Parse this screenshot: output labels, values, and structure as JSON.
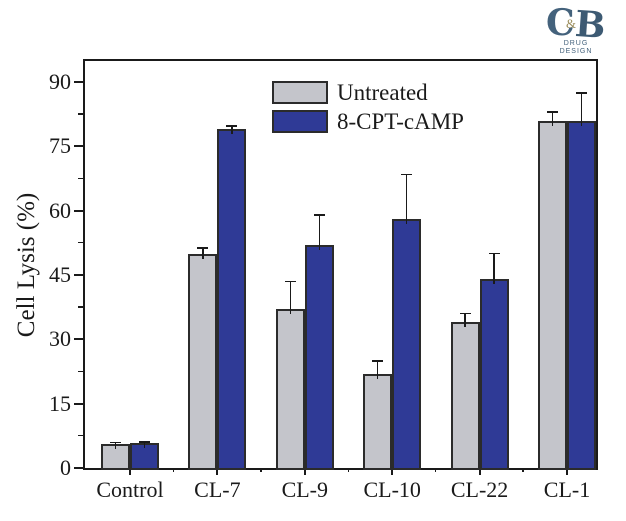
{
  "page": {
    "background": "#ffffff"
  },
  "logo": {
    "letter_c": "C",
    "ampersand": "&",
    "letter_b": "B",
    "line1": "DRUG",
    "line2": "DESIGN",
    "color": "#44627c"
  },
  "chart_data": {
    "type": "bar",
    "title": "",
    "xlabel": "",
    "ylabel": "Cell Lysis (%)",
    "ylim": [
      0,
      95.4
    ],
    "y_major_ticks": [
      0,
      15,
      30,
      45,
      60,
      75,
      90
    ],
    "y_minor_step": 7.5,
    "grid": false,
    "legend_position": "top-center-inside",
    "categories": [
      "Control",
      "CL-7",
      "CL-9",
      "CL-10",
      "CL-22",
      "CL-1"
    ],
    "series": [
      {
        "name": "Untreated",
        "color": "#c4c5cb",
        "values": [
          5.5,
          50,
          37,
          22,
          34,
          81
        ],
        "errors": [
          0.4,
          1.3,
          6.5,
          3,
          2,
          2
        ]
      },
      {
        "name": "8-CPT-cAMP",
        "color": "#2f3a96",
        "values": [
          5.8,
          79,
          52,
          58,
          44,
          81
        ],
        "errors": [
          0.3,
          0.8,
          7,
          10.5,
          6,
          6.5
        ]
      }
    ],
    "bar_edge_color": "#2b2b2b",
    "axis_color": "#1a1a1a"
  }
}
